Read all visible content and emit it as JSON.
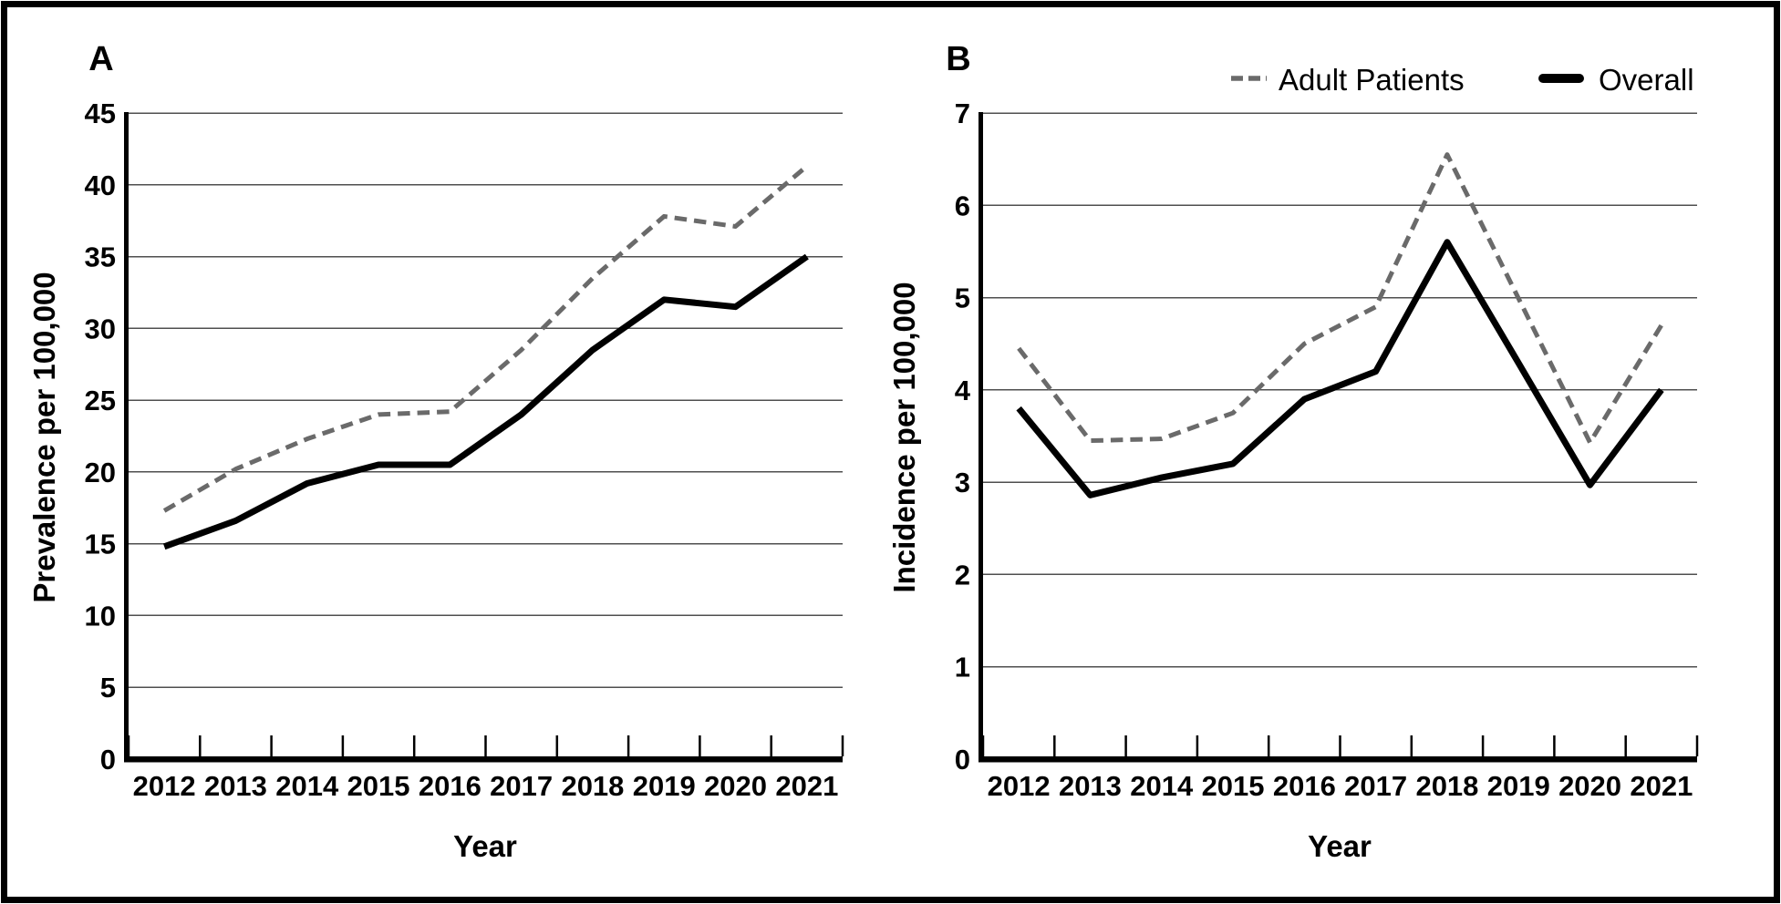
{
  "legend": {
    "items": [
      {
        "label": "Adult Patients",
        "style": "dashed",
        "color": "#6a6a6a"
      },
      {
        "label": "Overall",
        "style": "solid",
        "color": "#000000"
      }
    ]
  },
  "colors": {
    "adult_patients_line": "#6a6a6a",
    "overall_line": "#000000",
    "gridline": "#4f4f4f",
    "axis": "#000000",
    "background": "#ffffff",
    "frame_border": "#000000"
  },
  "chart_data": [
    {
      "type": "line",
      "panel_label": "A",
      "ylabel": "Prevalence per 100,000",
      "xlabel": "Year",
      "categories": [
        "2012",
        "2013",
        "2014",
        "2015",
        "2016",
        "2017",
        "2018",
        "2019",
        "2020",
        "2021"
      ],
      "ylim": [
        0,
        45
      ],
      "yticks": [
        0,
        5,
        10,
        15,
        20,
        25,
        30,
        35,
        40,
        45
      ],
      "grid": "horizontal",
      "series": [
        {
          "name": "Adult Patients",
          "style": "dashed",
          "values": [
            17.3,
            20.2,
            22.3,
            24.0,
            24.2,
            28.5,
            33.5,
            37.8,
            37.1,
            41.3
          ]
        },
        {
          "name": "Overall",
          "style": "solid",
          "values": [
            14.8,
            16.6,
            19.2,
            20.5,
            20.5,
            24.0,
            28.5,
            32.0,
            31.5,
            35.0
          ]
        }
      ]
    },
    {
      "type": "line",
      "panel_label": "B",
      "ylabel": "Incidence per 100,000",
      "xlabel": "Year",
      "categories": [
        "2012",
        "2013",
        "2014",
        "2015",
        "2016",
        "2017",
        "2018",
        "2019",
        "2020",
        "2021"
      ],
      "ylim": [
        0,
        7
      ],
      "yticks": [
        0,
        1,
        2,
        3,
        4,
        5,
        6,
        7
      ],
      "grid": "horizontal",
      "legend_position": "top-right",
      "series": [
        {
          "name": "Adult Patients",
          "style": "dashed",
          "values": [
            4.45,
            3.45,
            3.47,
            3.75,
            4.5,
            4.9,
            6.55,
            4.99,
            3.43,
            4.7
          ]
        },
        {
          "name": "Overall",
          "style": "solid",
          "values": [
            3.8,
            2.86,
            3.05,
            3.2,
            3.9,
            4.2,
            5.6,
            4.29,
            2.97,
            4.0
          ]
        }
      ]
    }
  ]
}
